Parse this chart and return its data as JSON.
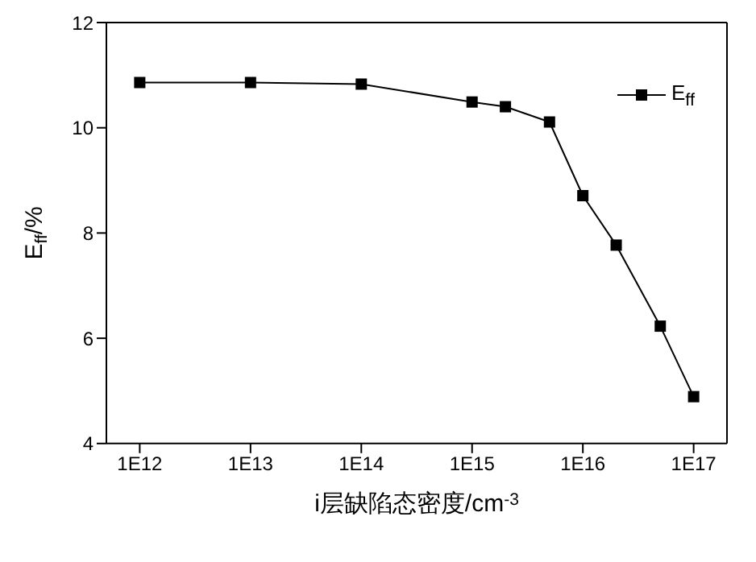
{
  "chart_data": {
    "type": "line",
    "xlabel": "i层缺陷态密度/cm$^{-3}$",
    "ylabel": "E$_{ff}$/%",
    "x": [
      1000000000000.0,
      10000000000000.0,
      100000000000000.0,
      1000000000000000.0,
      2000000000000000.0,
      5000000000000000.0,
      1e+16,
      2e+16,
      5e+16,
      1e+17
    ],
    "series": [
      {
        "name": "E$_{ff}$",
        "color": "#000000",
        "values": [
          10.86,
          10.86,
          10.83,
          10.49,
          10.4,
          10.11,
          8.71,
          7.77,
          6.23,
          4.89
        ]
      }
    ],
    "log": "x",
    "xlim": [
      500000000000.0,
      2e+17
    ],
    "xticks": [
      {
        "value": 1000000000000.0,
        "label": "1E12"
      },
      {
        "value": 10000000000000.0,
        "label": "1E13"
      },
      {
        "value": 100000000000000.0,
        "label": "1E14"
      },
      {
        "value": 1000000000000000.0,
        "label": "1E15"
      },
      {
        "value": 1e+16,
        "label": "1E16"
      },
      {
        "value": 1e+17,
        "label": "1E17"
      }
    ],
    "ylim": [
      4,
      12
    ],
    "yticks": [
      4,
      6,
      8,
      10,
      12
    ],
    "grid": false,
    "legend": "top right",
    "marker": "square",
    "line_style": "solid"
  }
}
